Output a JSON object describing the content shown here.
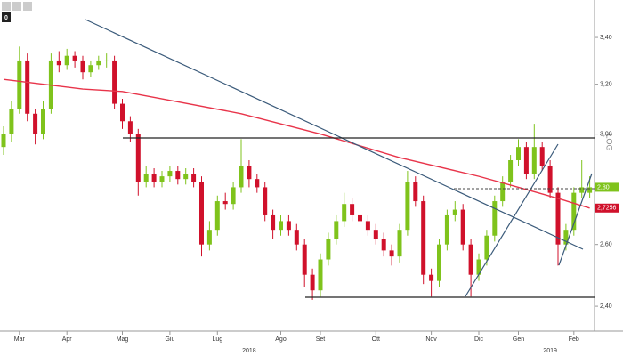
{
  "chart_data": {
    "type": "candlestick",
    "log_scale": true,
    "ylim": [
      2.324,
      3.569
    ],
    "yticks": [
      {
        "value": 2.4,
        "label": "2,40"
      },
      {
        "value": 2.6,
        "label": "2,60"
      },
      {
        "value": 3.0,
        "label": "3,00"
      },
      {
        "value": 3.2,
        "label": "3,20"
      },
      {
        "value": 3.4,
        "label": "3,40"
      }
    ],
    "categories": [
      null,
      null,
      "Mar",
      null,
      null,
      null,
      null,
      null,
      "Apr",
      null,
      null,
      null,
      null,
      null,
      null,
      "Mag",
      null,
      null,
      null,
      null,
      null,
      "Giu",
      null,
      null,
      null,
      null,
      null,
      "Lug",
      null,
      null,
      null,
      null,
      null,
      null,
      null,
      "Ago",
      null,
      null,
      null,
      null,
      "Set",
      null,
      null,
      null,
      null,
      null,
      null,
      "Ott",
      null,
      null,
      null,
      null,
      null,
      null,
      "Nov",
      null,
      null,
      null,
      null,
      null,
      "Dic",
      null,
      null,
      null,
      null,
      "Gen",
      null,
      null,
      null,
      null,
      null,
      null,
      "Feb",
      null,
      null
    ],
    "years": [
      null,
      null,
      null,
      null,
      null,
      null,
      null,
      null,
      null,
      null,
      null,
      null,
      null,
      null,
      null,
      null,
      null,
      null,
      null,
      null,
      null,
      null,
      null,
      null,
      null,
      null,
      null,
      null,
      null,
      null,
      null,
      "2018",
      null,
      null,
      null,
      null,
      null,
      null,
      null,
      null,
      null,
      null,
      null,
      null,
      null,
      null,
      null,
      null,
      null,
      null,
      null,
      null,
      null,
      null,
      null,
      null,
      null,
      null,
      null,
      null,
      null,
      null,
      null,
      null,
      null,
      null,
      null,
      null,
      null,
      "2019",
      null,
      null,
      null,
      null,
      null
    ],
    "up_color": "#7fc31c",
    "down_color": "#d0112b",
    "open": [
      2.95,
      3.0,
      3.1,
      3.3,
      3.08,
      3.0,
      3.1,
      3.3,
      3.28,
      3.32,
      3.3,
      3.25,
      3.28,
      3.3,
      3.3,
      3.12,
      3.05,
      3.0,
      2.82,
      2.85,
      2.82,
      2.84,
      2.86,
      2.83,
      2.85,
      2.82,
      2.6,
      2.65,
      2.75,
      2.74,
      2.8,
      2.88,
      2.83,
      2.8,
      2.7,
      2.65,
      2.68,
      2.65,
      2.6,
      2.5,
      2.45,
      2.55,
      2.62,
      2.68,
      2.74,
      2.7,
      2.68,
      2.65,
      2.62,
      2.58,
      2.56,
      2.65,
      2.82,
      2.75,
      2.5,
      2.48,
      2.6,
      2.7,
      2.72,
      2.6,
      2.5,
      2.55,
      2.63,
      2.75,
      2.82,
      2.9,
      2.95,
      2.85,
      2.95,
      2.88,
      2.78,
      2.6,
      2.65,
      2.78,
      2.78
    ],
    "high": [
      3.03,
      3.13,
      3.36,
      3.33,
      3.1,
      3.13,
      3.33,
      3.34,
      3.35,
      3.34,
      3.32,
      3.3,
      3.32,
      3.33,
      3.32,
      3.14,
      3.07,
      3.02,
      2.88,
      2.87,
      2.86,
      2.88,
      2.88,
      2.87,
      2.87,
      2.84,
      2.68,
      2.77,
      2.78,
      2.82,
      2.98,
      2.9,
      2.85,
      2.82,
      2.72,
      2.7,
      2.7,
      2.67,
      2.62,
      2.52,
      2.57,
      2.64,
      2.7,
      2.78,
      2.76,
      2.72,
      2.7,
      2.67,
      2.64,
      2.6,
      2.67,
      2.86,
      2.84,
      2.77,
      2.52,
      2.62,
      2.72,
      2.75,
      2.74,
      2.62,
      2.57,
      2.65,
      2.77,
      2.84,
      2.92,
      2.98,
      2.97,
      3.04,
      2.97,
      2.9,
      2.8,
      2.67,
      2.8,
      2.9,
      2.84
    ],
    "low": [
      2.92,
      2.97,
      3.08,
      3.05,
      2.96,
      2.98,
      3.08,
      3.25,
      3.26,
      3.27,
      3.22,
      3.23,
      3.26,
      3.27,
      3.1,
      3.02,
      2.97,
      2.77,
      2.8,
      2.8,
      2.8,
      2.82,
      2.81,
      2.81,
      2.8,
      2.56,
      2.58,
      2.63,
      2.72,
      2.72,
      2.78,
      2.8,
      2.78,
      2.68,
      2.62,
      2.63,
      2.63,
      2.58,
      2.46,
      2.42,
      2.43,
      2.53,
      2.6,
      2.66,
      2.68,
      2.66,
      2.63,
      2.6,
      2.56,
      2.53,
      2.54,
      2.63,
      2.73,
      2.47,
      2.43,
      2.46,
      2.58,
      2.68,
      2.58,
      2.43,
      2.48,
      2.53,
      2.61,
      2.73,
      2.8,
      2.88,
      2.83,
      2.83,
      2.86,
      2.76,
      2.53,
      2.58,
      2.63,
      2.76,
      2.76
    ],
    "close": [
      3.0,
      3.1,
      3.3,
      3.08,
      3.0,
      3.1,
      3.3,
      3.28,
      3.32,
      3.3,
      3.25,
      3.28,
      3.3,
      3.3,
      3.12,
      3.05,
      3.0,
      2.82,
      2.85,
      2.82,
      2.84,
      2.86,
      2.83,
      2.85,
      2.82,
      2.6,
      2.65,
      2.75,
      2.74,
      2.8,
      2.88,
      2.83,
      2.8,
      2.7,
      2.65,
      2.68,
      2.65,
      2.6,
      2.5,
      2.45,
      2.55,
      2.62,
      2.68,
      2.74,
      2.7,
      2.68,
      2.65,
      2.62,
      2.58,
      2.56,
      2.65,
      2.82,
      2.75,
      2.5,
      2.48,
      2.6,
      2.7,
      2.72,
      2.6,
      2.5,
      2.55,
      2.63,
      2.75,
      2.82,
      2.9,
      2.95,
      2.85,
      2.95,
      2.88,
      2.78,
      2.6,
      2.65,
      2.78,
      2.8,
      2.8
    ],
    "moving_average": {
      "color": "#e8344a",
      "x": [
        0,
        10,
        15,
        20,
        30,
        40,
        50,
        60,
        65,
        70,
        74
      ],
      "values": [
        3.22,
        3.18,
        3.17,
        3.14,
        3.08,
        3.0,
        2.91,
        2.84,
        2.8,
        2.76,
        2.7256
      ]
    },
    "last_price": {
      "value": 2.8,
      "label": "2,80"
    },
    "ma_last": {
      "value": 2.7256,
      "label": "2,7256"
    },
    "log_label": "LOG",
    "toolbar_badge": "0"
  }
}
